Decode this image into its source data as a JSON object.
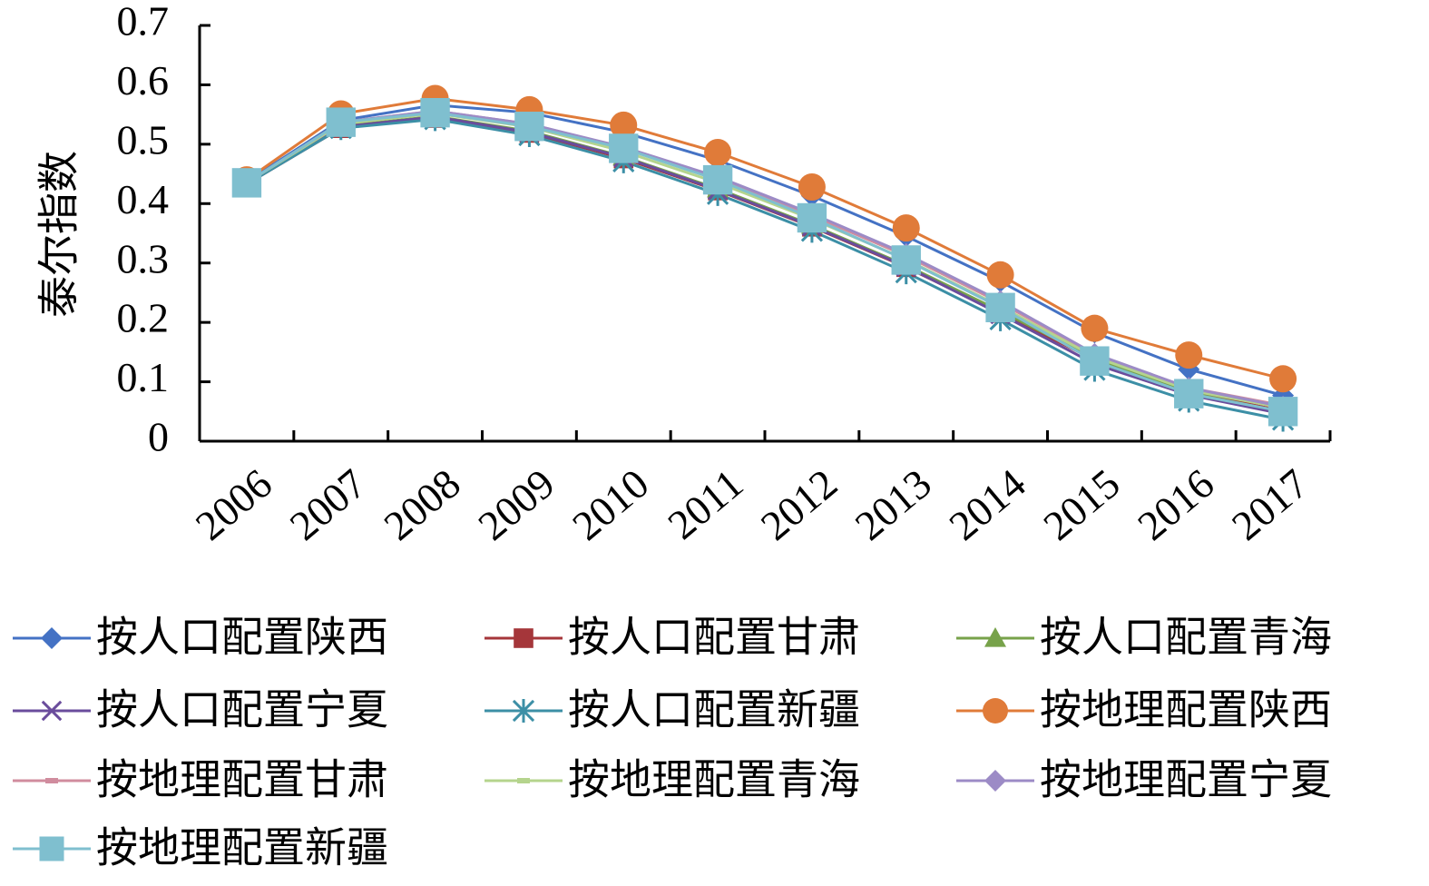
{
  "chart_data": {
    "type": "line",
    "ylabel": "泰尔指数",
    "xlabel": "",
    "ylim": [
      0,
      0.7
    ],
    "yticks": [
      "0",
      "0.1",
      "0.2",
      "0.3",
      "0.4",
      "0.5",
      "0.6",
      "0.7"
    ],
    "categories": [
      "2006",
      "2007",
      "2008",
      "2009",
      "2010",
      "2011",
      "2012",
      "2013",
      "2014",
      "2015",
      "2016",
      "2017"
    ],
    "grid": false,
    "legend_position": "bottom",
    "series": [
      {
        "name": "按人口配置陕西",
        "color": "#4472C4",
        "marker": "diamond",
        "values": [
          0.437,
          0.54,
          0.566,
          0.553,
          0.52,
          0.473,
          0.413,
          0.345,
          0.269,
          0.183,
          0.121,
          0.077
        ]
      },
      {
        "name": "按人口配置甘肃",
        "color": "#A5363A",
        "marker": "square",
        "values": [
          0.433,
          0.527,
          0.544,
          0.519,
          0.476,
          0.422,
          0.361,
          0.293,
          0.216,
          0.137,
          0.083,
          0.051
        ]
      },
      {
        "name": "按人口配置青海",
        "color": "#77A24A",
        "marker": "triangle",
        "values": [
          0.433,
          0.53,
          0.547,
          0.522,
          0.479,
          0.425,
          0.364,
          0.296,
          0.219,
          0.139,
          0.082,
          0.049
        ]
      },
      {
        "name": "按人口配置宁夏",
        "color": "#6A4C9C",
        "marker": "x",
        "values": [
          0.433,
          0.529,
          0.546,
          0.52,
          0.478,
          0.423,
          0.362,
          0.294,
          0.214,
          0.13,
          0.078,
          0.046
        ]
      },
      {
        "name": "按人口配置新疆",
        "color": "#3C8FA6",
        "marker": "star",
        "values": [
          0.433,
          0.527,
          0.542,
          0.515,
          0.471,
          0.416,
          0.354,
          0.284,
          0.205,
          0.12,
          0.068,
          0.036
        ]
      },
      {
        "name": "按地理配置陕西",
        "color": "#E07B39",
        "marker": "circle",
        "values": [
          0.44,
          0.551,
          0.577,
          0.558,
          0.532,
          0.486,
          0.428,
          0.359,
          0.28,
          0.19,
          0.145,
          0.105
        ]
      },
      {
        "name": "按地理配置甘肃",
        "color": "#D08C9E",
        "marker": "dash",
        "values": [
          0.435,
          0.537,
          0.556,
          0.534,
          0.494,
          0.441,
          0.38,
          0.312,
          0.233,
          0.146,
          0.09,
          0.06
        ]
      },
      {
        "name": "按地理配置青海",
        "color": "#B5D48D",
        "marker": "dash",
        "values": [
          0.435,
          0.534,
          0.552,
          0.529,
          0.488,
          0.435,
          0.374,
          0.306,
          0.227,
          0.142,
          0.086,
          0.056
        ]
      },
      {
        "name": "按地理配置宁夏",
        "color": "#9C8BC6",
        "marker": "diamond",
        "values": [
          0.435,
          0.537,
          0.556,
          0.534,
          0.495,
          0.445,
          0.383,
          0.315,
          0.236,
          0.147,
          0.09,
          0.058
        ]
      },
      {
        "name": "按地理配置新疆",
        "color": "#7FBFCF",
        "marker": "square",
        "values": [
          0.435,
          0.537,
          0.553,
          0.53,
          0.493,
          0.44,
          0.376,
          0.305,
          0.225,
          0.135,
          0.08,
          0.05
        ]
      }
    ]
  }
}
